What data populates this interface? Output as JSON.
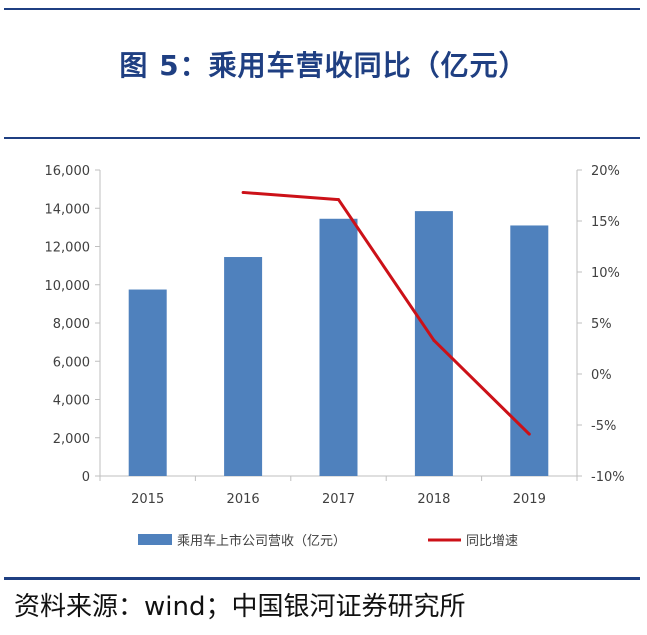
{
  "title": "图 5：乘用车营收同比（亿元）",
  "source": "资料来源：wind；中国银河证券研究所",
  "colors": {
    "bar": "#4f81bd",
    "line": "#cc1118",
    "rule": "#1f3f82",
    "axis": "#bfbfbf",
    "text": "#404040"
  },
  "chart_data": {
    "type": "bar",
    "categories": [
      "2015",
      "2016",
      "2017",
      "2018",
      "2019"
    ],
    "series": [
      {
        "name": "乘用车上市公司营收（亿元）",
        "type": "bar",
        "axis": "left",
        "values": [
          9750,
          11450,
          13450,
          13850,
          13100
        ]
      },
      {
        "name": "同比增速",
        "type": "line",
        "axis": "right",
        "values": [
          null,
          17.8,
          17.1,
          3.3,
          -5.9
        ]
      }
    ],
    "y_left": {
      "lim": [
        0,
        16000
      ],
      "ticks": [
        0,
        2000,
        4000,
        6000,
        8000,
        10000,
        12000,
        14000,
        16000
      ],
      "tick_labels": [
        "0",
        "2,000",
        "4,000",
        "6,000",
        "8,000",
        "10,000",
        "12,000",
        "14,000",
        "16,000"
      ]
    },
    "y_right": {
      "lim": [
        -10,
        20
      ],
      "ticks": [
        -10,
        -5,
        0,
        5,
        10,
        15,
        20
      ],
      "tick_labels": [
        "-10%",
        "-5%",
        "0%",
        "5%",
        "10%",
        "15%",
        "20%"
      ]
    },
    "legend_position": "bottom",
    "grid": false
  }
}
